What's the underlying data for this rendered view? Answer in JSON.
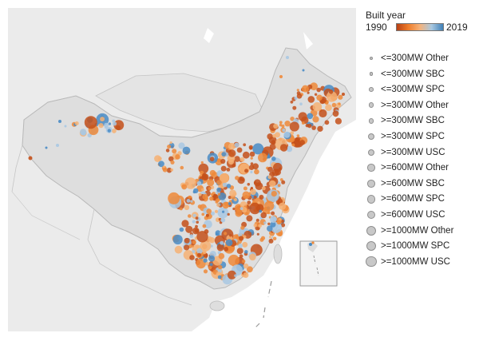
{
  "legend": {
    "title": "Built year",
    "colorbar": {
      "min_label": "1990",
      "max_label": "2019",
      "colors": [
        "#b84014",
        "#ee7d2b",
        "#f5b27a",
        "#a9c8e0",
        "#3f7fb7"
      ]
    },
    "size_items": [
      {
        "label": "<=300MW Other",
        "size": 1
      },
      {
        "label": "<=300MW SBC",
        "size": 1
      },
      {
        "label": "<=300MW SPC",
        "size": 2
      },
      {
        "label": ">=300MW Other",
        "size": 3
      },
      {
        "label": ">=300MW SBC",
        "size": 3
      },
      {
        "label": ">=300MW SPC",
        "size": 4
      },
      {
        "label": ">=300MW USC",
        "size": 4
      },
      {
        "label": ">=600MW Other",
        "size": 5
      },
      {
        "label": ">=600MW SBC",
        "size": 5
      },
      {
        "label": ">=600MW SPC",
        "size": 6
      },
      {
        "label": ">=600MW USC",
        "size": 6
      },
      {
        "label": ">=1000MW Other",
        "size": 7
      },
      {
        "label": ">=1000MW SPC",
        "size": 7
      },
      {
        "label": ">=1000MW USC",
        "size": 8
      }
    ]
  },
  "map": {
    "land_color": "#e9e9e9",
    "china_color": "#dedede",
    "water_color": "#ffffff",
    "border_color": "#bdbdbd",
    "colors": {
      "old": "#c4501a",
      "mid": "#ef8a3a",
      "light": "#f6b274",
      "pale": "#a9c8e3",
      "new": "#4a8cc5"
    }
  }
}
